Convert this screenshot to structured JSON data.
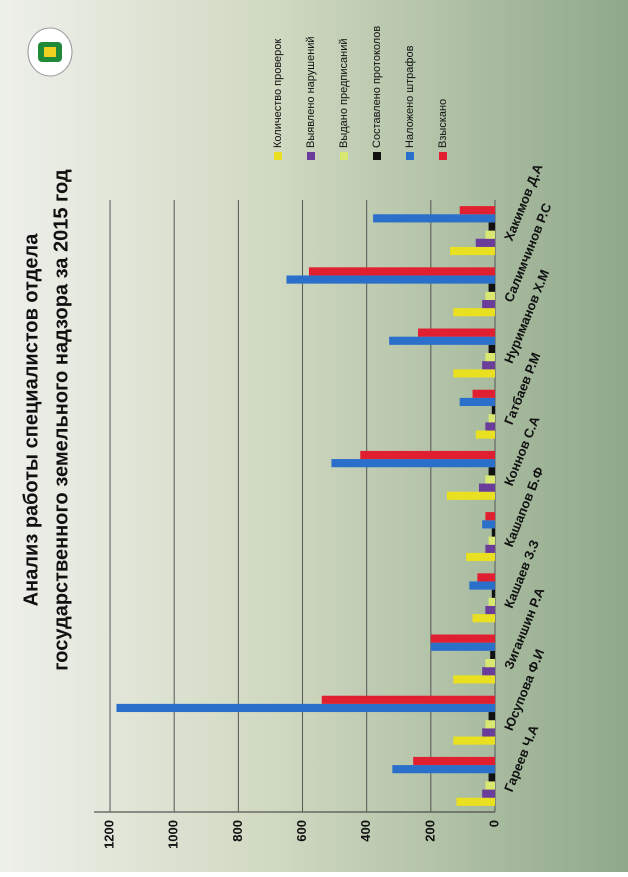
{
  "chart_data": {
    "type": "bar",
    "title": [
      "Анализ работы специалистов отдела",
      "государственного земельного надзора за 2015 год"
    ],
    "categories": [
      "Гареев Ч.А",
      "Юсупова Ф.И",
      "Зиганшин Р.А",
      "Кашаев З.З",
      "Кашапов Б.Ф",
      "Коннов С.А",
      "Гатбаев Р.М",
      "Нуриманов Х.М",
      "Салимчинов Р.С",
      "Хакимов Д.А"
    ],
    "series": [
      {
        "name": "Количество проверок",
        "color": "#e8e020",
        "values": [
          120,
          130,
          130,
          70,
          90,
          150,
          60,
          130,
          130,
          140
        ]
      },
      {
        "name": "Выявлено нарушений",
        "color": "#6a3d9a",
        "values": [
          40,
          40,
          40,
          30,
          30,
          50,
          30,
          40,
          40,
          60
        ]
      },
      {
        "name": "Выдано предписаний",
        "color": "#d8e870",
        "values": [
          30,
          30,
          30,
          20,
          20,
          30,
          20,
          30,
          30,
          30
        ]
      },
      {
        "name": "Составлено протоколов",
        "color": "#111111",
        "values": [
          20,
          20,
          15,
          10,
          10,
          20,
          10,
          20,
          20,
          20
        ]
      },
      {
        "name": "Наложено штрафов",
        "color": "#2a6fc9",
        "values": [
          320,
          1180,
          200,
          80,
          40,
          510,
          110,
          330,
          650,
          380
        ]
      },
      {
        "name": "Взыскано",
        "color": "#e02030",
        "values": [
          255,
          540,
          200,
          55,
          30,
          420,
          70,
          240,
          580,
          110
        ]
      }
    ],
    "ylim": [
      0,
      1250
    ],
    "yticks": [
      0,
      200,
      400,
      600,
      800,
      1000,
      1200
    ],
    "grid": true,
    "legend": "right"
  }
}
